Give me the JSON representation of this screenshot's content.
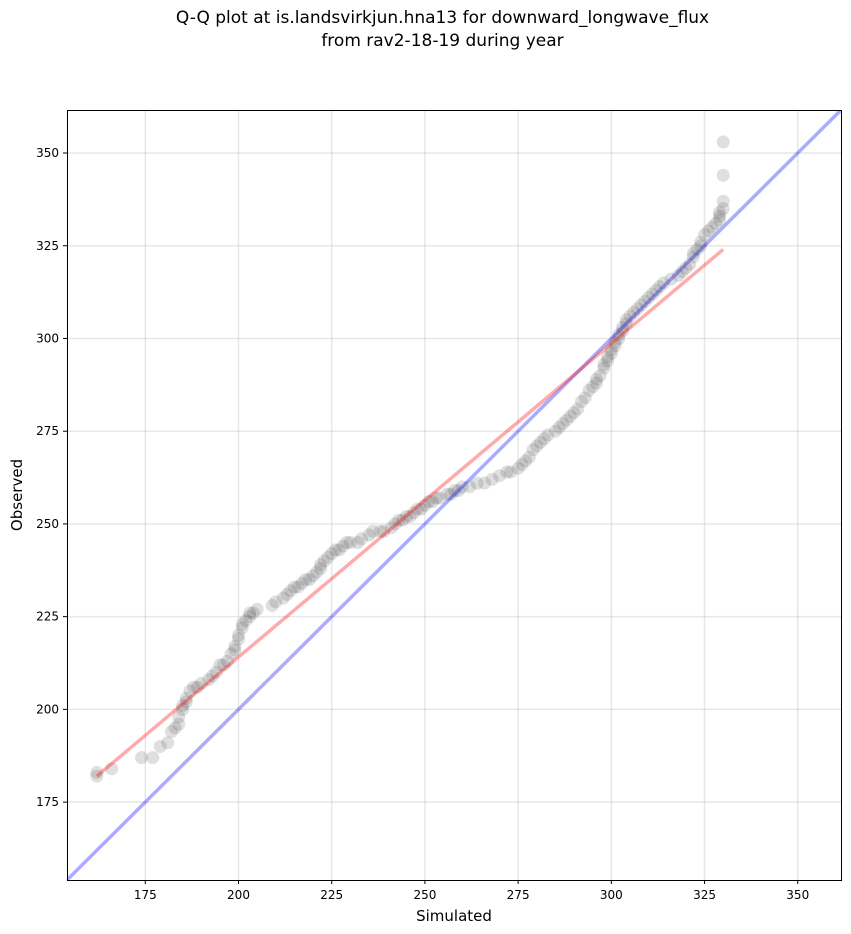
{
  "chart_data": {
    "type": "scatter",
    "title": [
      "Q-Q plot at is.landsvirkjun.hna13 for downward_longwave_flux",
      "from rav2-18-19 during year"
    ],
    "xlabel": "Simulated",
    "ylabel": "Observed",
    "xlim": [
      154,
      361.6
    ],
    "ylim": [
      154,
      361.6
    ],
    "xticks": [
      175,
      200,
      225,
      250,
      275,
      300,
      325,
      350
    ],
    "yticks": [
      175,
      200,
      225,
      250,
      275,
      300,
      325,
      350
    ],
    "grid": true,
    "points": [
      [
        162,
        182
      ],
      [
        162,
        183
      ],
      [
        166,
        184
      ],
      [
        174,
        187
      ],
      [
        177,
        187
      ],
      [
        179,
        190
      ],
      [
        181,
        191
      ],
      [
        182,
        194
      ],
      [
        183,
        195
      ],
      [
        184,
        196
      ],
      [
        184,
        198
      ],
      [
        185,
        200
      ],
      [
        185,
        201
      ],
      [
        186,
        202
      ],
      [
        186,
        203
      ],
      [
        187,
        205
      ],
      [
        188,
        206
      ],
      [
        189,
        206
      ],
      [
        190,
        207
      ],
      [
        192,
        208
      ],
      [
        193,
        209
      ],
      [
        194,
        210
      ],
      [
        195,
        212
      ],
      [
        196,
        212
      ],
      [
        197,
        213
      ],
      [
        198,
        215
      ],
      [
        199,
        216
      ],
      [
        199,
        217
      ],
      [
        200,
        219
      ],
      [
        200,
        220
      ],
      [
        201,
        222
      ],
      [
        201,
        223
      ],
      [
        202,
        224
      ],
      [
        203,
        225
      ],
      [
        203,
        226
      ],
      [
        204,
        226
      ],
      [
        205,
        227
      ],
      [
        209,
        228
      ],
      [
        210,
        229
      ],
      [
        212,
        230
      ],
      [
        213,
        231
      ],
      [
        214,
        232
      ],
      [
        215,
        233
      ],
      [
        216,
        233
      ],
      [
        217,
        234
      ],
      [
        218,
        235
      ],
      [
        219,
        235
      ],
      [
        220,
        236
      ],
      [
        221,
        237
      ],
      [
        222,
        238
      ],
      [
        222,
        239
      ],
      [
        223,
        240
      ],
      [
        224,
        241
      ],
      [
        225,
        242
      ],
      [
        226,
        243
      ],
      [
        227,
        243
      ],
      [
        228,
        244
      ],
      [
        229,
        245
      ],
      [
        230,
        245
      ],
      [
        232,
        245
      ],
      [
        233,
        246
      ],
      [
        235,
        247
      ],
      [
        236,
        248
      ],
      [
        238,
        248
      ],
      [
        239,
        248
      ],
      [
        241,
        249
      ],
      [
        242,
        250
      ],
      [
        243,
        251
      ],
      [
        244,
        251
      ],
      [
        245,
        252
      ],
      [
        246,
        252
      ],
      [
        247,
        253
      ],
      [
        248,
        254
      ],
      [
        249,
        254
      ],
      [
        250,
        255
      ],
      [
        251,
        256
      ],
      [
        252,
        256
      ],
      [
        253,
        257
      ],
      [
        254,
        257
      ],
      [
        256,
        258
      ],
      [
        257,
        258
      ],
      [
        258,
        259
      ],
      [
        259,
        259
      ],
      [
        260,
        260
      ],
      [
        262,
        260
      ],
      [
        264,
        261
      ],
      [
        266,
        261
      ],
      [
        268,
        262
      ],
      [
        270,
        263
      ],
      [
        272,
        264
      ],
      [
        273,
        264
      ],
      [
        275,
        265
      ],
      [
        276,
        266
      ],
      [
        277,
        267
      ],
      [
        278,
        268
      ],
      [
        279,
        270
      ],
      [
        280,
        271
      ],
      [
        281,
        272
      ],
      [
        282,
        273
      ],
      [
        283,
        274
      ],
      [
        285,
        275
      ],
      [
        286,
        276
      ],
      [
        287,
        277
      ],
      [
        288,
        278
      ],
      [
        289,
        279
      ],
      [
        290,
        280
      ],
      [
        291,
        281
      ],
      [
        292,
        283
      ],
      [
        293,
        284
      ],
      [
        294,
        286
      ],
      [
        295,
        287
      ],
      [
        296,
        288
      ],
      [
        296,
        289
      ],
      [
        297,
        290
      ],
      [
        298,
        292
      ],
      [
        298,
        293
      ],
      [
        299,
        294
      ],
      [
        299,
        295
      ],
      [
        300,
        296
      ],
      [
        300,
        297
      ],
      [
        301,
        298
      ],
      [
        301,
        299
      ],
      [
        302,
        300
      ],
      [
        302,
        301
      ],
      [
        303,
        302
      ],
      [
        303,
        303
      ],
      [
        304,
        304
      ],
      [
        304,
        305
      ],
      [
        305,
        306
      ],
      [
        306,
        307
      ],
      [
        307,
        308
      ],
      [
        308,
        309
      ],
      [
        309,
        310
      ],
      [
        310,
        311
      ],
      [
        311,
        312
      ],
      [
        312,
        313
      ],
      [
        313,
        314
      ],
      [
        314,
        315
      ],
      [
        316,
        316
      ],
      [
        318,
        317
      ],
      [
        319,
        318
      ],
      [
        320,
        319
      ],
      [
        321,
        320
      ],
      [
        322,
        322
      ],
      [
        322,
        323
      ],
      [
        323,
        324
      ],
      [
        324,
        325
      ],
      [
        324,
        326
      ],
      [
        325,
        328
      ],
      [
        326,
        329
      ],
      [
        327,
        330
      ],
      [
        328,
        331
      ],
      [
        329,
        332
      ],
      [
        329,
        333
      ],
      [
        329,
        334
      ],
      [
        330,
        335
      ],
      [
        330,
        337
      ],
      [
        330,
        344
      ],
      [
        330,
        353
      ]
    ],
    "reference_line": {
      "name": "1:1 line",
      "color": "#0000ff"
    },
    "fit_line": {
      "name": "fit",
      "color": "#ff0000",
      "x": [
        162,
        330
      ],
      "y": [
        182,
        324
      ]
    },
    "point_color": "#404040"
  }
}
